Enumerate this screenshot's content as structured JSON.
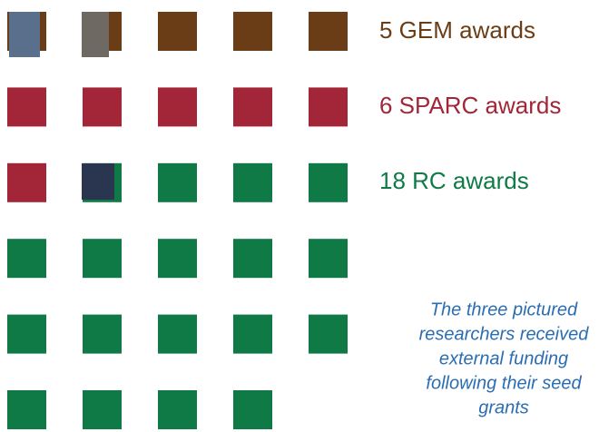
{
  "chart_data": {
    "type": "waffle",
    "columns": 5,
    "series": [
      {
        "label": "5 GEM awards",
        "value": 5,
        "color": "#6a3d16"
      },
      {
        "label": "6 SPARC awards",
        "value": 6,
        "color": "#a32638"
      },
      {
        "label": "18 RC awards",
        "value": 18,
        "color": "#0f7a45"
      }
    ],
    "annotation": [
      "The three pictured",
      "researchers received",
      "external funding",
      "following their seed",
      "grants"
    ]
  }
}
